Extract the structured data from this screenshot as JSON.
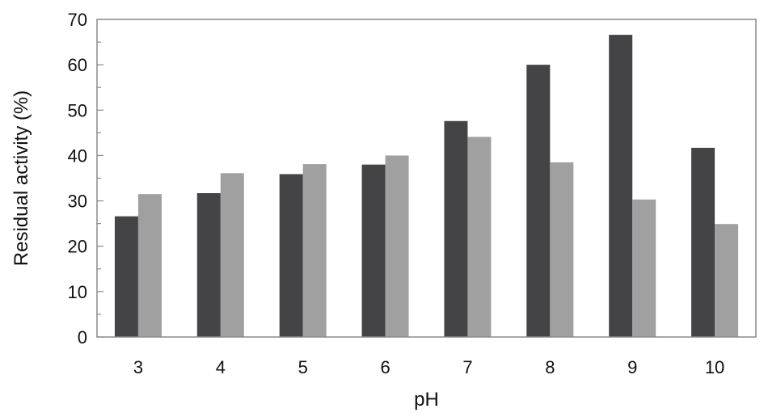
{
  "chart_data": {
    "type": "bar",
    "title": "",
    "xlabel": "pH",
    "ylabel": "Residual activity (%)",
    "categories": [
      "3",
      "4",
      "5",
      "6",
      "7",
      "8",
      "9",
      "10"
    ],
    "series": [
      {
        "values": [
          26.6,
          31.7,
          35.9,
          38.0,
          47.6,
          60.0,
          66.6,
          41.7
        ],
        "color": "#444446"
      },
      {
        "values": [
          31.5,
          36.1,
          38.1,
          40.0,
          44.1,
          38.5,
          30.3,
          24.9
        ],
        "color": "#a0a0a0"
      }
    ],
    "ylim": [
      0,
      70
    ],
    "yticks": [
      0,
      10,
      20,
      30,
      40,
      50,
      60,
      70
    ],
    "grid": false,
    "legend": "none"
  }
}
